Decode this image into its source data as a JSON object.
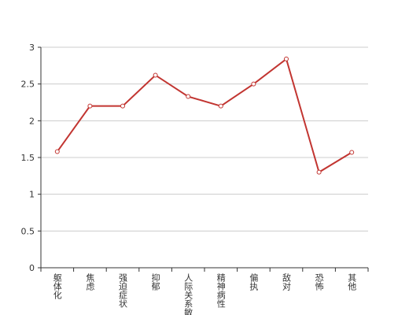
{
  "chart_data": {
    "type": "line",
    "categories": [
      "躯体化",
      "焦虑",
      "强迫症状",
      "抑郁",
      "人际关系敏感",
      "精神病性",
      "偏执",
      "敌对",
      "恐怖",
      "其他"
    ],
    "series": [
      {
        "name": null,
        "color": "#c23531",
        "values": [
          1.58,
          2.2,
          2.2,
          2.62,
          2.33,
          2.2,
          2.5,
          2.84,
          1.3,
          1.57
        ]
      }
    ],
    "ylim": [
      0,
      3
    ],
    "yticks": [
      0,
      0.5,
      1,
      1.5,
      2,
      2.5,
      3
    ],
    "grid": true
  }
}
